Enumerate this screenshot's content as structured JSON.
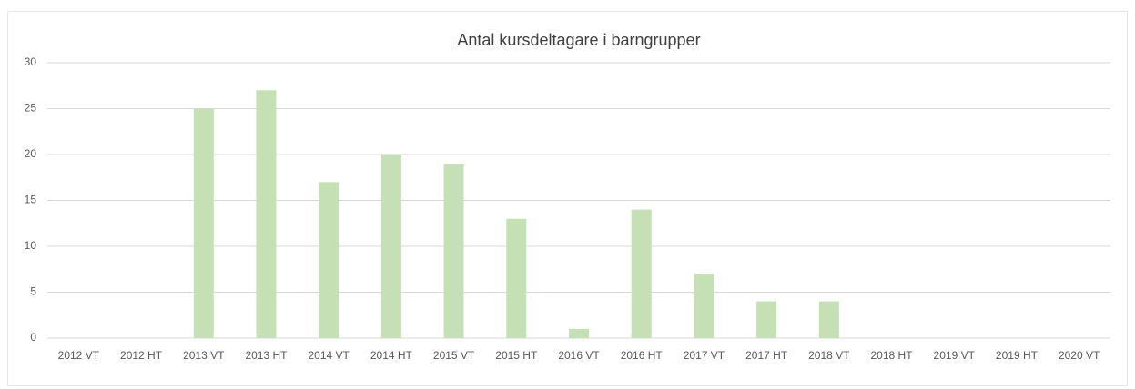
{
  "chart_data": {
    "type": "bar",
    "title": "Antal kursdeltagare i barngrupper",
    "categories": [
      "2012 VT",
      "2012 HT",
      "2013 VT",
      "2013 HT",
      "2014 VT",
      "2014 HT",
      "2015 VT",
      "2015 HT",
      "2016 VT",
      "2016 HT",
      "2017 VT",
      "2017 HT",
      "2018 VT",
      "2018 HT",
      "2019 VT",
      "2019 HT",
      "2020 VT"
    ],
    "values": [
      0,
      0,
      25,
      27,
      17,
      20,
      19,
      13,
      1,
      14,
      7,
      4,
      4,
      0,
      0,
      0,
      0
    ],
    "color": "#c5e0b4",
    "ylim": [
      0,
      30
    ],
    "yticks": [
      0,
      5,
      10,
      15,
      20,
      25,
      30
    ],
    "grid": true
  }
}
